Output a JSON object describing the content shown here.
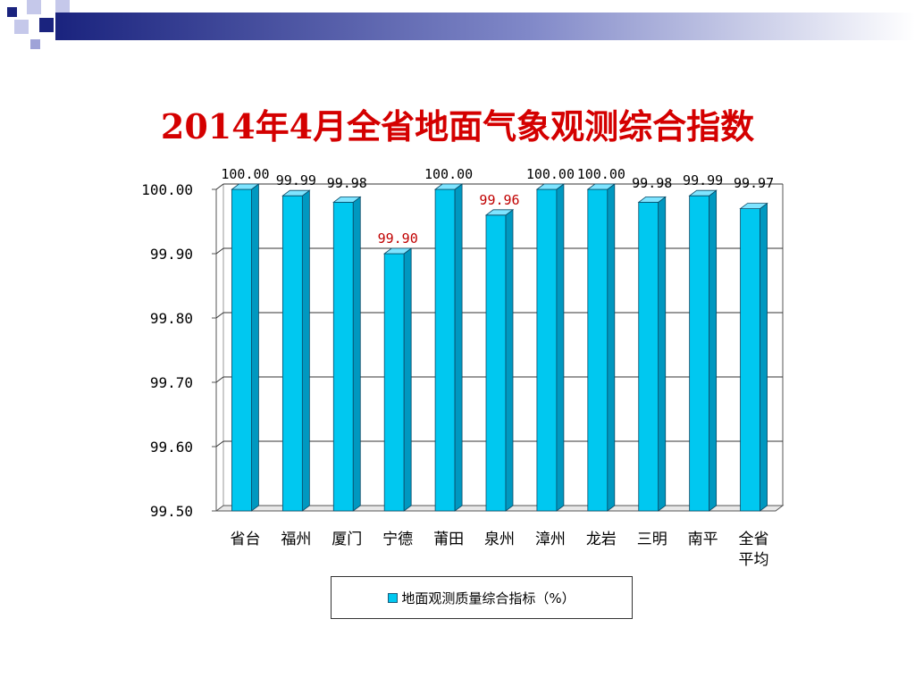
{
  "slide": {
    "title": "2014年4月全省地面气象观测综合指数"
  },
  "colors": {
    "title": "#d40000",
    "bar_front": "#00c8f0",
    "bar_side": "#0098c0",
    "bar_top": "#7fe4ff",
    "highlight_label": "#c00000",
    "deco_navy": "#1a237e",
    "deco_lavender": "#9fa3d8"
  },
  "chart_data": {
    "type": "bar",
    "title": "2014年4月全省地面气象观测综合指数",
    "categories": [
      [
        "省台"
      ],
      [
        "福州"
      ],
      [
        "厦门"
      ],
      [
        "宁德"
      ],
      [
        "莆田"
      ],
      [
        "泉州"
      ],
      [
        "漳州"
      ],
      [
        "龙岩"
      ],
      [
        "三明"
      ],
      [
        "南平"
      ],
      [
        "全省",
        "平均"
      ]
    ],
    "series": [
      {
        "name": "地面观测质量综合指标（%）",
        "values": [
          100.0,
          99.99,
          99.98,
          99.9,
          100.0,
          99.96,
          100.0,
          100.0,
          99.98,
          99.99,
          99.97
        ],
        "labels": [
          "100.00",
          "99.99",
          "99.98",
          "99.90",
          "100.00",
          "99.96",
          "100.00",
          "100.00",
          "99.98",
          "99.99",
          "99.97"
        ]
      }
    ],
    "highlighted_indices": [
      3,
      5
    ],
    "ylim": [
      99.5,
      100.0
    ],
    "yticks": [
      "100.00",
      "99.90",
      "99.80",
      "99.70",
      "99.60",
      "99.50"
    ],
    "ytick_values": [
      100.0,
      99.9,
      99.8,
      99.7,
      99.6,
      99.5
    ],
    "xlabel": "",
    "ylabel": "",
    "grid": true,
    "legend_position": "bottom"
  }
}
